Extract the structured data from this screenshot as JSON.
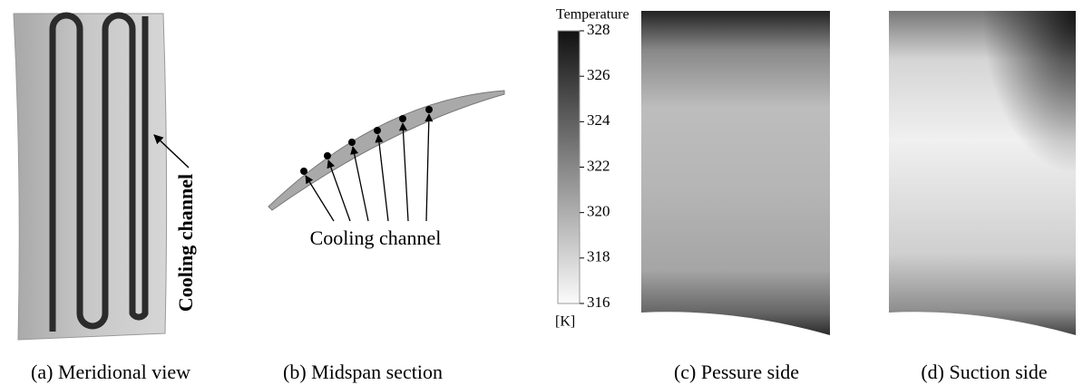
{
  "panels": [
    {
      "caption": "(a) Meridional view",
      "label": "Cooling channel"
    },
    {
      "caption": "(b) Midspan section",
      "label": "Cooling channel"
    },
    {
      "caption": "(c) Pessure side"
    },
    {
      "caption": "(d) Suction side"
    }
  ],
  "colorbar": {
    "title": "Temperature",
    "ticks": [
      316,
      318,
      320,
      322,
      324,
      326,
      328
    ],
    "unit": "[K]"
  }
}
